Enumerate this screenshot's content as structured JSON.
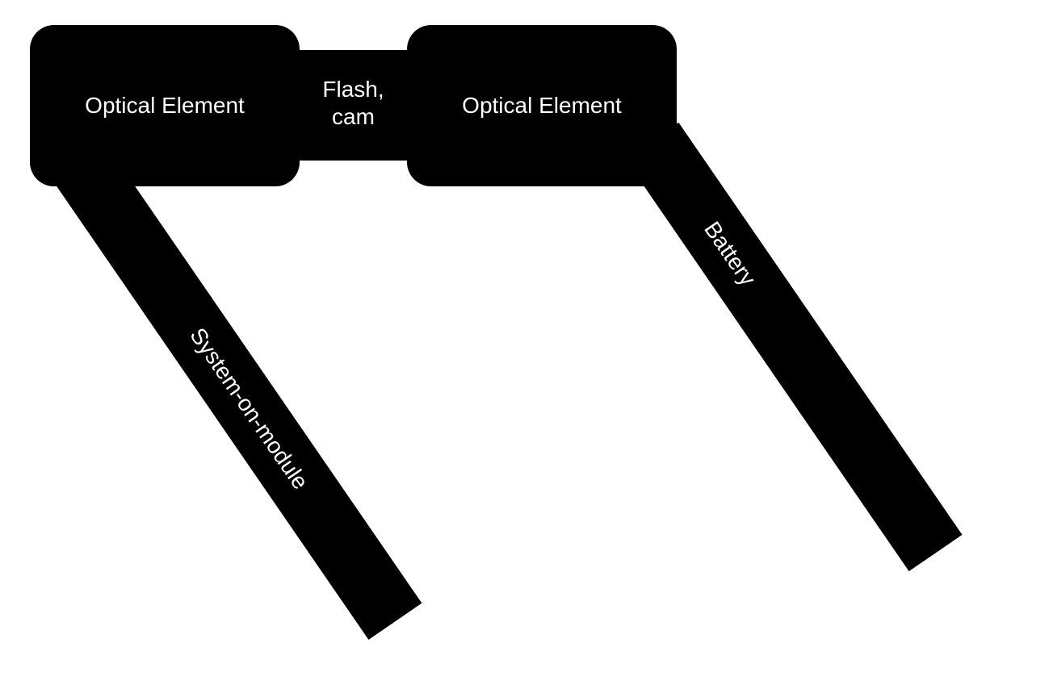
{
  "diagram": {
    "nodes": {
      "optical_left": {
        "label": "Optical Element"
      },
      "optical_right": {
        "label": "Optical Element"
      },
      "flash_cam": {
        "line1": "Flash,",
        "line2": "cam"
      },
      "system_on_module": {
        "label": "System-on-module"
      },
      "battery": {
        "label": "Battery"
      }
    },
    "colors": {
      "shape_fill": "#000000",
      "text": "#ffffff",
      "background": "#ffffff"
    }
  }
}
